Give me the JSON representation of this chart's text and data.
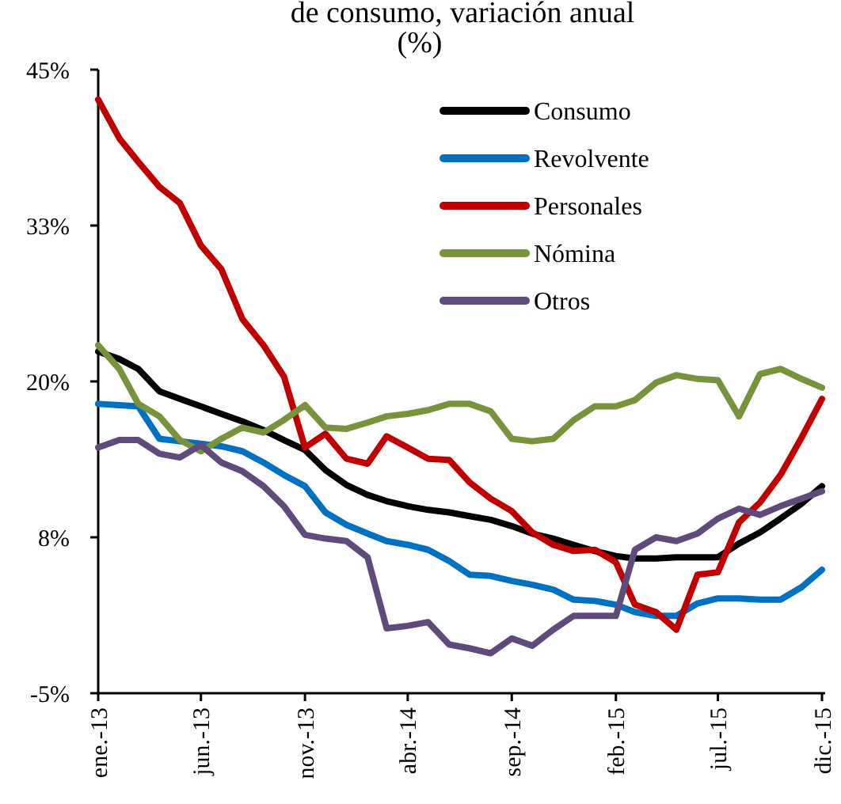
{
  "chart_data": {
    "type": "line",
    "title": "de consumo, variación anual",
    "subtitle": "(%)",
    "x": [
      "2013-01",
      "2013-02",
      "2013-03",
      "2013-04",
      "2013-05",
      "2013-06",
      "2013-07",
      "2013-08",
      "2013-09",
      "2013-10",
      "2013-11",
      "2013-12",
      "2014-01",
      "2014-02",
      "2014-03",
      "2014-04",
      "2014-05",
      "2014-06",
      "2014-07",
      "2014-08",
      "2014-09",
      "2014-10",
      "2014-11",
      "2014-12",
      "2015-01",
      "2015-02",
      "2015-03",
      "2015-04",
      "2015-05",
      "2015-06",
      "2015-07",
      "2015-08",
      "2015-09",
      "2015-10",
      "2015-11",
      "2015-12"
    ],
    "series": [
      {
        "name": "Consumo",
        "color": "#000000",
        "values": [
          22.4,
          21.8,
          21.0,
          19.2,
          18.6,
          18.0,
          17.4,
          16.8,
          16.1,
          15.3,
          14.5,
          12.9,
          11.7,
          10.9,
          10.4,
          10.0,
          9.7,
          9.5,
          9.2,
          8.9,
          8.4,
          7.8,
          7.4,
          6.9,
          6.4,
          6.0,
          5.8,
          5.8,
          5.9,
          5.9,
          5.9,
          7.0,
          7.9,
          9.0,
          10.2,
          11.6
        ]
      },
      {
        "name": "Revolvente",
        "color": "#0070c0",
        "values": [
          18.2,
          18.1,
          18.0,
          15.4,
          15.2,
          15.0,
          14.8,
          14.4,
          13.5,
          12.5,
          11.6,
          9.5,
          8.5,
          7.8,
          7.2,
          6.9,
          6.5,
          5.6,
          4.5,
          4.4,
          4.0,
          3.7,
          3.3,
          2.5,
          2.4,
          2.1,
          1.5,
          1.2,
          1.2,
          2.2,
          2.6,
          2.6,
          2.5,
          2.5,
          3.5,
          4.9
        ]
      },
      {
        "name": "Personales",
        "color": "#c00000",
        "values": [
          42.6,
          39.5,
          37.6,
          35.6,
          34.3,
          30.9,
          29.0,
          25.0,
          22.9,
          20.4,
          14.7,
          15.8,
          13.8,
          13.4,
          15.6,
          14.7,
          13.8,
          13.7,
          11.9,
          10.6,
          9.6,
          7.9,
          6.9,
          6.4,
          6.5,
          5.5,
          2.1,
          1.5,
          0.1,
          4.5,
          4.7,
          8.7,
          10.3,
          12.5,
          15.5,
          18.6
        ]
      },
      {
        "name": "Nómina",
        "color": "#77933c",
        "values": [
          22.9,
          21.0,
          18.2,
          17.2,
          15.3,
          14.4,
          15.4,
          16.3,
          15.9,
          16.9,
          18.1,
          16.3,
          16.2,
          16.7,
          17.2,
          17.4,
          17.7,
          18.2,
          18.2,
          17.6,
          15.4,
          15.2,
          15.4,
          16.9,
          18.0,
          18.0,
          18.5,
          19.9,
          20.5,
          20.2,
          20.1,
          17.2,
          20.6,
          21.0,
          20.2,
          19.5
        ]
      },
      {
        "name": "Otros",
        "color": "#604a7b",
        "values": [
          14.7,
          15.3,
          15.3,
          14.2,
          13.9,
          14.9,
          13.5,
          12.8,
          11.6,
          10.0,
          7.7,
          7.4,
          7.2,
          5.9,
          0.2,
          0.4,
          0.7,
          -1.1,
          -1.4,
          -1.8,
          -0.6,
          -1.2,
          0.1,
          1.2,
          1.2,
          1.2,
          6.5,
          7.5,
          7.2,
          7.8,
          9.0,
          9.8,
          9.3,
          10.0,
          10.6,
          11.2
        ]
      }
    ],
    "xlim": [
      "2013-01",
      "2015-12"
    ],
    "xticks": [
      {
        "value": "2013-01",
        "label": "ene.-13"
      },
      {
        "value": "2013-06",
        "label": "jun.-13"
      },
      {
        "value": "2013-11",
        "label": "nov.-13"
      },
      {
        "value": "2014-04",
        "label": "abr.-14"
      },
      {
        "value": "2014-09",
        "label": "sep.-14"
      },
      {
        "value": "2015-02",
        "label": "feb.-15"
      },
      {
        "value": "2015-07",
        "label": "jul.-15"
      },
      {
        "value": "2015-12",
        "label": "dic.-15"
      }
    ],
    "ylim": [
      -5,
      45
    ],
    "yticks": [
      {
        "value": -5,
        "label": "-5%"
      },
      {
        "value": 7.5,
        "label": "8%"
      },
      {
        "value": 20,
        "label": "20%"
      },
      {
        "value": 32.5,
        "label": "33%"
      },
      {
        "value": 45,
        "label": "45%"
      }
    ],
    "grid": false,
    "legend": "top right",
    "marker": "none",
    "line_style": "solid"
  }
}
